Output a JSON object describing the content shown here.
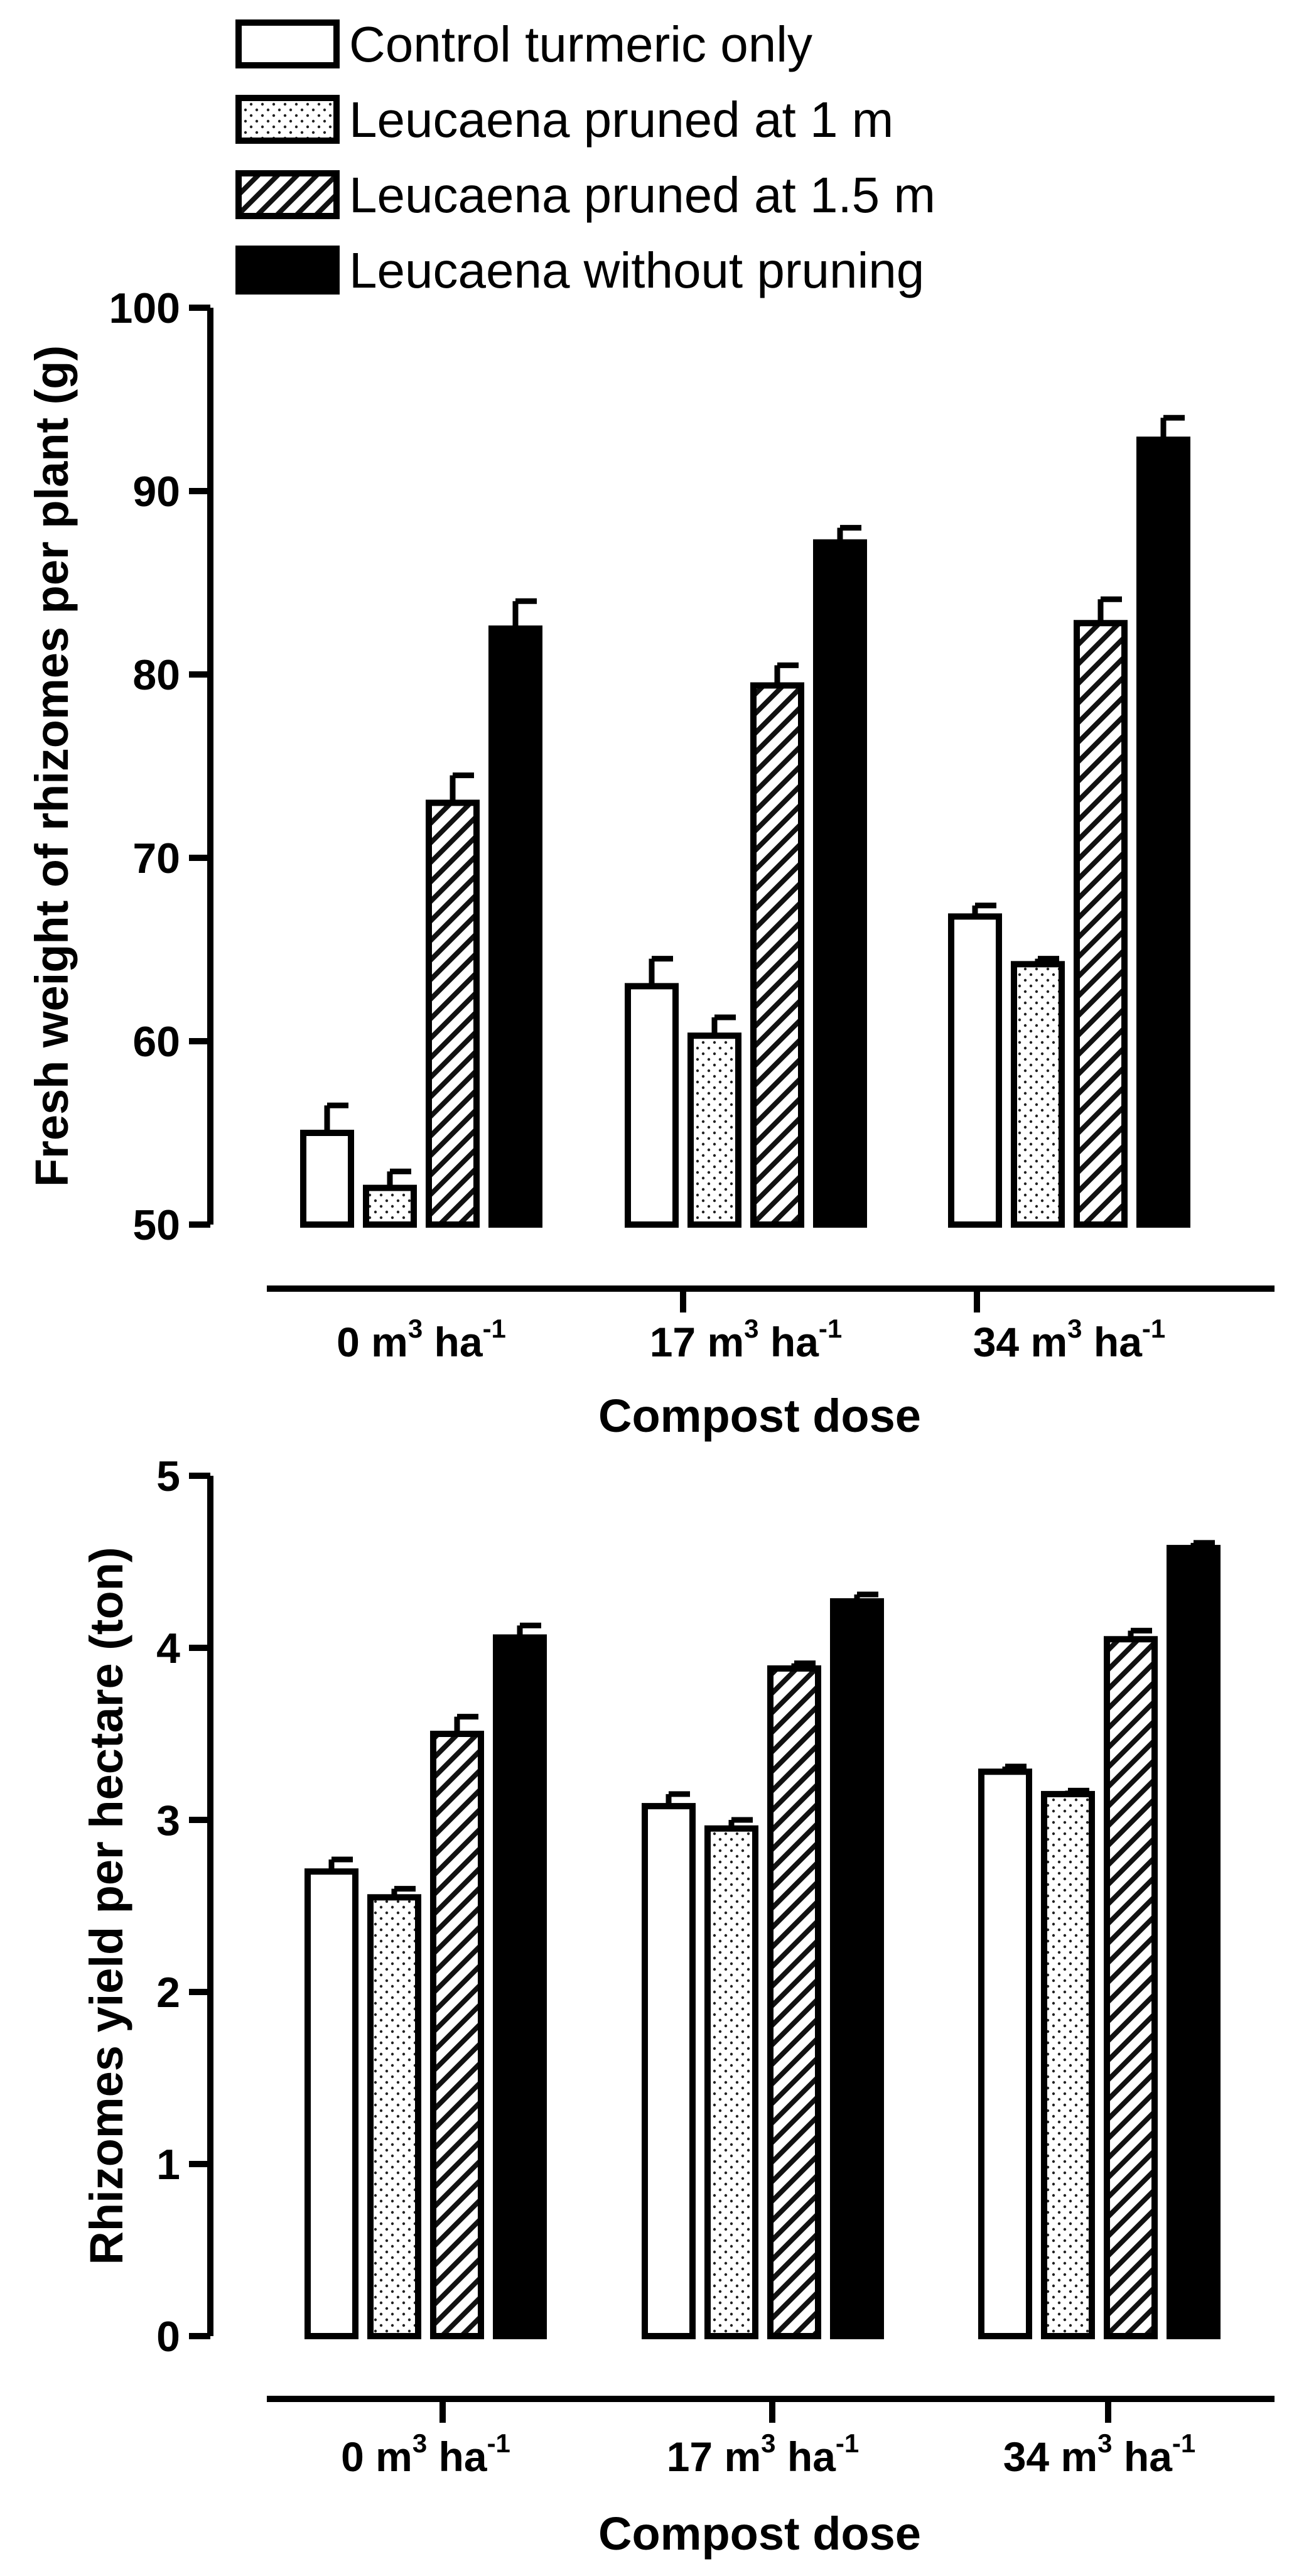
{
  "legend": [
    {
      "label": "Control turmeric only",
      "pattern": "white"
    },
    {
      "label": "Leucaena pruned at 1 m",
      "pattern": "dots"
    },
    {
      "label": "Leucaena pruned at 1.5 m",
      "pattern": "hatch"
    },
    {
      "label": "Leucaena without pruning",
      "pattern": "black"
    }
  ],
  "chart_data": [
    {
      "type": "bar",
      "title": "",
      "xlabel": "Compost dose",
      "ylabel": "Fresh weight of rhizomes per plant (g)",
      "ylim": [
        50,
        100
      ],
      "yticks": [
        50,
        60,
        70,
        80,
        90,
        100
      ],
      "categories": [
        {
          "value": "0",
          "unit": "m",
          "exp1": "3",
          "ha": "ha",
          "exp2": "-1"
        },
        {
          "value": "17",
          "unit": "m",
          "exp1": "3",
          "ha": "ha",
          "exp2": "-1"
        },
        {
          "value": "34",
          "unit": "m",
          "exp1": "3",
          "ha": "ha",
          "exp2": "-1"
        }
      ],
      "series": [
        {
          "name": "Control turmeric only",
          "values": [
            55.0,
            63.0,
            66.8
          ],
          "errors": [
            1.5,
            1.5,
            0.6
          ]
        },
        {
          "name": "Leucaena pruned at 1 m",
          "values": [
            52.0,
            60.3,
            64.2
          ],
          "errors": [
            0.9,
            1.0,
            0.3
          ]
        },
        {
          "name": "Leucaena pruned at 1.5 m",
          "values": [
            73.0,
            79.4,
            82.8
          ],
          "errors": [
            1.5,
            1.1,
            1.3
          ]
        },
        {
          "name": "Leucaena without pruning",
          "values": [
            82.5,
            87.2,
            92.8
          ],
          "errors": [
            1.5,
            0.8,
            1.2
          ]
        }
      ]
    },
    {
      "type": "bar",
      "title": "",
      "xlabel": "Compost dose",
      "ylabel": "Rhizomes yield per hectare (ton)",
      "ylim": [
        0,
        5
      ],
      "yticks": [
        0,
        1,
        2,
        3,
        4,
        5
      ],
      "categories": [
        {
          "value": "0",
          "unit": "m",
          "exp1": "3",
          "ha": "ha",
          "exp2": "-1"
        },
        {
          "value": "17",
          "unit": "m",
          "exp1": "3",
          "ha": "ha",
          "exp2": "-1"
        },
        {
          "value": "34",
          "unit": "m",
          "exp1": "3",
          "ha": "ha",
          "exp2": "-1"
        }
      ],
      "series": [
        {
          "name": "Control turmeric only",
          "values": [
            2.7,
            3.08,
            3.28
          ],
          "errors": [
            0.07,
            0.07,
            0.03
          ]
        },
        {
          "name": "Leucaena pruned at 1 m",
          "values": [
            2.55,
            2.95,
            3.15
          ],
          "errors": [
            0.05,
            0.05,
            0.02
          ]
        },
        {
          "name": "Leucaena pruned at 1.5 m",
          "values": [
            3.5,
            3.88,
            4.05
          ],
          "errors": [
            0.1,
            0.03,
            0.05
          ]
        },
        {
          "name": "Leucaena without pruning",
          "values": [
            4.06,
            4.27,
            4.58
          ],
          "errors": [
            0.07,
            0.04,
            0.03
          ]
        }
      ]
    }
  ]
}
